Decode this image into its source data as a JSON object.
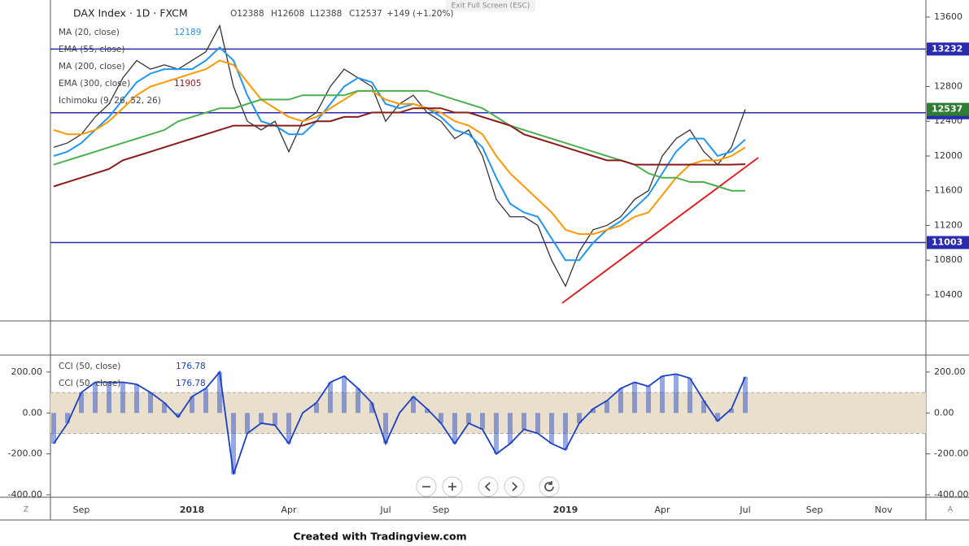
{
  "ui": {
    "exit_fullscreen": "Exit Full Screen (ESC)",
    "footer": "Created with Tradingview.com",
    "left_button": "Z",
    "right_button": "A"
  },
  "chart_data": [
    {
      "type": "line",
      "title": "DAX Index · 1D · FXCM",
      "ohlc": [
        "O12388",
        "H12608",
        "L12388",
        "C12537",
        "+149 (+1.20%)"
      ],
      "categories": [
        null,
        null,
        "Sep",
        null,
        null,
        null,
        null,
        null,
        null,
        null,
        "2018",
        null,
        null,
        null,
        null,
        null,
        null,
        "Apr",
        null,
        null,
        null,
        null,
        null,
        null,
        "Jul",
        null,
        null,
        null,
        "Sep",
        null,
        null,
        null,
        null,
        null,
        null,
        null,
        null,
        "2019",
        null,
        null,
        null,
        null,
        null,
        null,
        "Apr",
        null,
        null,
        null,
        null,
        null,
        "Jul",
        null,
        null,
        null,
        null,
        "Sep",
        null,
        null,
        null,
        null,
        "Nov",
        null,
        null,
        null
      ],
      "values": [
        12100,
        12150,
        12250,
        12450,
        12600,
        12900,
        13100,
        13000,
        13050,
        13000,
        13100,
        13200,
        13500,
        12800,
        12400,
        12300,
        12400,
        12050,
        12400,
        12500,
        12800,
        13000,
        12900,
        12800,
        12400,
        12600,
        12700,
        12500,
        12400,
        12200,
        12300,
        12000,
        11500,
        11300,
        11300,
        11200,
        10800,
        10500,
        10900,
        11150,
        11200,
        11300,
        11500,
        11600,
        12000,
        12200,
        12300,
        12050,
        11900,
        12100,
        12537,
        null,
        null,
        null,
        null,
        null,
        null,
        null,
        null,
        null,
        null,
        null,
        null,
        null
      ],
      "color": "#333333",
      "series": [
        {
          "name": "MA (20, close)",
          "color": "#2196f3",
          "legend_value": 12189,
          "values": [
            12000,
            12050,
            12150,
            12300,
            12450,
            12650,
            12850,
            12950,
            13000,
            13000,
            13000,
            13100,
            13250,
            13100,
            12700,
            12400,
            12350,
            12250,
            12250,
            12400,
            12600,
            12800,
            12900,
            12850,
            12600,
            12550,
            12600,
            12550,
            12450,
            12300,
            12250,
            12100,
            11750,
            11450,
            11350,
            11300,
            11050,
            10800,
            10800,
            11000,
            11150,
            11250,
            11400,
            11550,
            11800,
            12050,
            12200,
            12200,
            12000,
            12050,
            12189,
            null,
            null,
            null,
            null,
            null,
            null,
            null,
            null,
            null,
            null,
            null,
            null,
            null
          ]
        },
        {
          "name": "EMA (55, close)",
          "color": "#ff9800",
          "values": [
            12300,
            12250,
            12250,
            12300,
            12400,
            12550,
            12700,
            12800,
            12850,
            12900,
            12950,
            13000,
            13100,
            13050,
            12850,
            12650,
            12550,
            12450,
            12400,
            12450,
            12550,
            12650,
            12750,
            12750,
            12650,
            12600,
            12600,
            12550,
            12500,
            12400,
            12350,
            12250,
            12000,
            11800,
            11650,
            11500,
            11350,
            11150,
            11100,
            11100,
            11150,
            11200,
            11300,
            11350,
            11550,
            11750,
            11900,
            11950,
            11950,
            12000,
            12100,
            null,
            null,
            null,
            null,
            null,
            null,
            null,
            null,
            null,
            null,
            null,
            null,
            null
          ]
        },
        {
          "name": "MA (200, close)",
          "color": "#4caf50",
          "values": [
            11900,
            11950,
            12000,
            12050,
            12100,
            12150,
            12200,
            12250,
            12300,
            12400,
            12450,
            12500,
            12550,
            12550,
            12600,
            12650,
            12650,
            12650,
            12700,
            12700,
            12700,
            12700,
            12750,
            12750,
            12750,
            12750,
            12750,
            12750,
            12700,
            12650,
            12600,
            12550,
            12450,
            12350,
            12300,
            12250,
            12200,
            12150,
            12100,
            12050,
            12000,
            11950,
            11900,
            11800,
            11750,
            11750,
            11700,
            11700,
            11650,
            11600,
            11600,
            null,
            null,
            null,
            null,
            null,
            null,
            null,
            null,
            null,
            null,
            null,
            null,
            null
          ]
        },
        {
          "name": "EMA (300, close)",
          "color": "#8b1a1a",
          "legend_value": 11905,
          "values": [
            11650,
            11700,
            11750,
            11800,
            11850,
            11950,
            12000,
            12050,
            12100,
            12150,
            12200,
            12250,
            12300,
            12350,
            12350,
            12350,
            12350,
            12350,
            12350,
            12400,
            12400,
            12450,
            12450,
            12500,
            12500,
            12500,
            12550,
            12550,
            12550,
            12500,
            12500,
            12450,
            12400,
            12350,
            12250,
            12200,
            12150,
            12100,
            12050,
            12000,
            11950,
            11950,
            11900,
            11900,
            11900,
            11900,
            11900,
            11900,
            11900,
            11900,
            11905,
            null,
            null,
            null,
            null,
            null,
            null,
            null,
            null,
            null,
            null,
            null,
            null,
            null
          ]
        }
      ],
      "indicator_labels": [
        "Ichimoku (9, 26, 52, 26)"
      ],
      "ylim": [
        10100,
        13750
      ],
      "yticks": [
        10400,
        10800,
        11200,
        11600,
        12000,
        12400,
        12800,
        13200,
        13600
      ],
      "hlines": [
        {
          "value": 13232,
          "color": "#2b2bb0"
        },
        {
          "value": 12498,
          "color": "#2b2bb0"
        },
        {
          "value": 11003,
          "color": "#2b2bb0"
        }
      ],
      "last_price": {
        "value": 12537,
        "color": "#2e7d32"
      }
    },
    {
      "type": "line",
      "series": [
        {
          "name": "CCI (50, close)",
          "color": "#1a3fc4",
          "legend_value": 176.78,
          "values": [
            -150,
            -50,
            100,
            150,
            150,
            150,
            140,
            100,
            50,
            -20,
            80,
            120,
            200,
            -300,
            -100,
            -50,
            -60,
            -150,
            0,
            50,
            150,
            180,
            120,
            50,
            -150,
            0,
            80,
            20,
            -50,
            -150,
            -50,
            -80,
            -200,
            -150,
            -80,
            -100,
            -150,
            -180,
            -50,
            20,
            60,
            120,
            150,
            130,
            180,
            190,
            170,
            60,
            -40,
            20,
            176.78,
            null,
            null,
            null,
            null,
            null,
            null,
            null,
            null,
            null,
            null,
            null,
            null,
            null
          ]
        }
      ],
      "band": [
        -100,
        100
      ],
      "band_color": "#e9dfcc",
      "ylim": [
        -412,
        283
      ],
      "yticks": [
        {
          "value": 200,
          "label": "200.00"
        },
        {
          "value": 0,
          "label": "0.00"
        },
        {
          "value": -200,
          "label": "-200.00"
        },
        {
          "value": -400,
          "label": "-400.00"
        }
      ]
    }
  ]
}
